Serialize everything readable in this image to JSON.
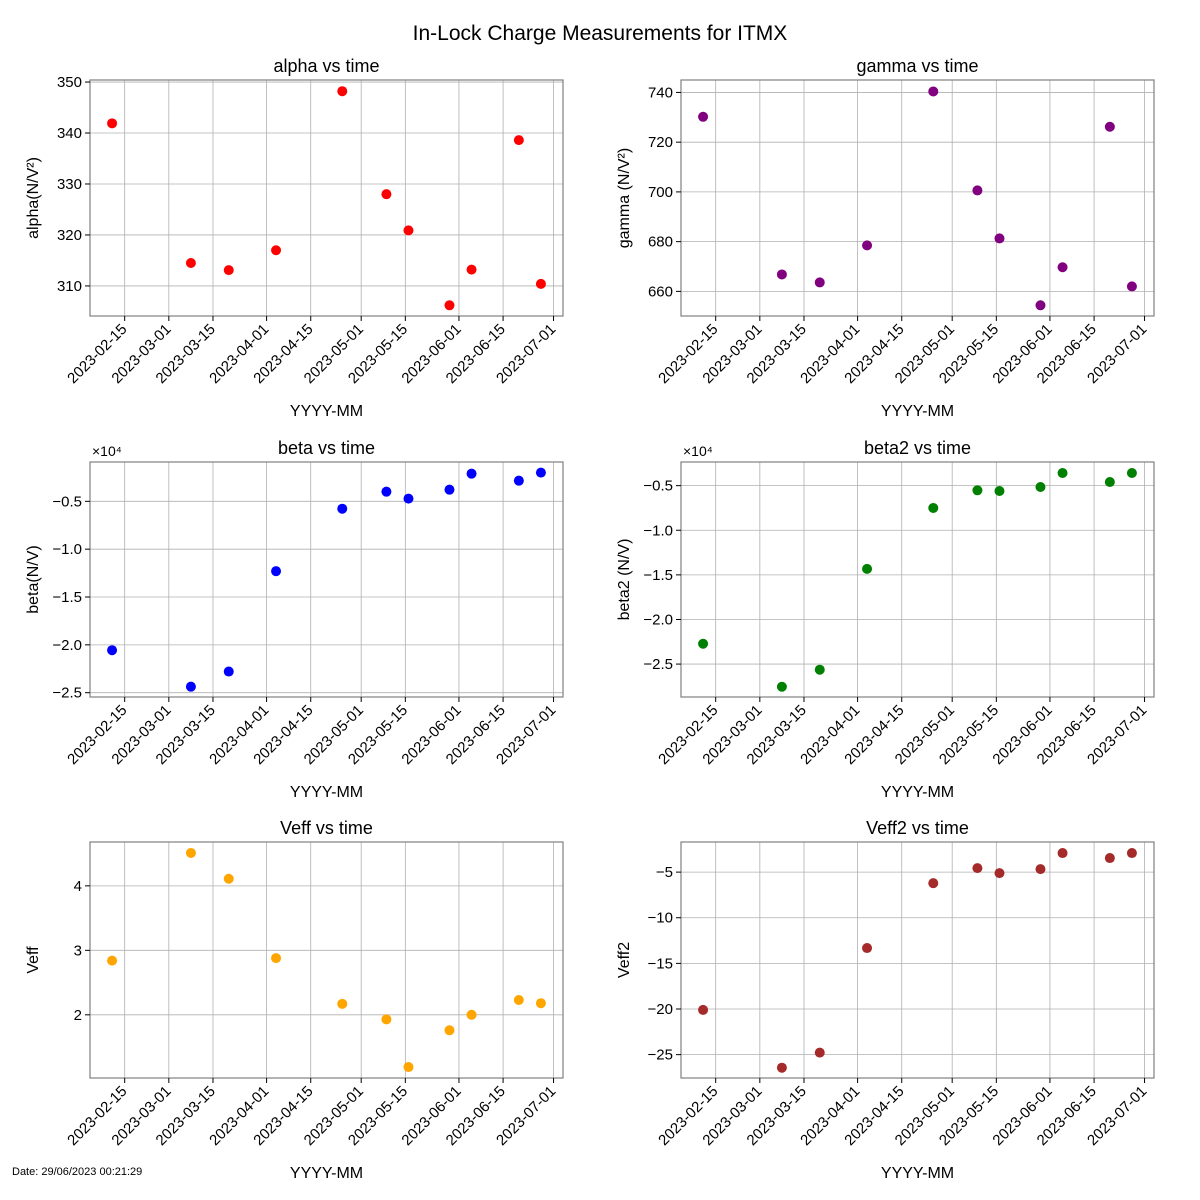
{
  "figure": {
    "title": "In-Lock Charge Measurements for ITMX",
    "footer": "Date: 29/06/2023 00:21:29"
  },
  "chart_data": [
    {
      "type": "scatter",
      "title": "alpha vs time",
      "xlabel": "YYYY-MM",
      "ylabel": "alpha(N/V²)",
      "color": "#ff0000",
      "x": [
        "2023-02-11",
        "2023-03-08",
        "2023-03-20",
        "2023-04-04",
        "2023-04-25",
        "2023-05-09",
        "2023-05-16",
        "2023-05-29",
        "2023-06-05",
        "2023-06-20",
        "2023-06-27"
      ],
      "y": [
        341.9,
        314.5,
        313.1,
        317.0,
        348.2,
        328.0,
        320.9,
        306.2,
        313.2,
        338.6,
        310.4
      ],
      "ylim": [
        304.1,
        350.4
      ],
      "yticks": [
        310,
        320,
        330,
        340,
        350
      ],
      "ytick_labels": [
        "310",
        "320",
        "330",
        "340",
        "350"
      ],
      "offset_text": "",
      "grid": true
    },
    {
      "type": "scatter",
      "title": "gamma vs time",
      "xlabel": "YYYY-MM",
      "ylabel": "gamma (N/V²)",
      "color": "#800080",
      "x": [
        "2023-02-11",
        "2023-03-08",
        "2023-03-20",
        "2023-04-04",
        "2023-04-25",
        "2023-05-09",
        "2023-05-16",
        "2023-05-29",
        "2023-06-05",
        "2023-06-20",
        "2023-06-27"
      ],
      "y": [
        730.2,
        666.8,
        663.6,
        678.5,
        740.4,
        700.6,
        681.3,
        654.4,
        669.7,
        726.2,
        662.0
      ],
      "ylim": [
        650.1,
        745.0
      ],
      "yticks": [
        660,
        680,
        700,
        720,
        740
      ],
      "ytick_labels": [
        "660",
        "680",
        "700",
        "720",
        "740"
      ],
      "offset_text": "",
      "grid": true
    },
    {
      "type": "scatter",
      "title": "beta vs time",
      "xlabel": "YYYY-MM",
      "ylabel": "beta(N/V)",
      "color": "#0000ff",
      "x": [
        "2023-02-11",
        "2023-03-08",
        "2023-03-20",
        "2023-04-04",
        "2023-04-25",
        "2023-05-09",
        "2023-05-16",
        "2023-05-29",
        "2023-06-05",
        "2023-06-20",
        "2023-06-27"
      ],
      "y": [
        -20560,
        -24370,
        -22790,
        -12300,
        -5770,
        -3990,
        -4720,
        -3780,
        -2110,
        -2840,
        -2000
      ],
      "ylim": [
        -25450,
        -890
      ],
      "yticks": [
        -25000,
        -20000,
        -15000,
        -10000,
        -5000
      ],
      "ytick_labels": [
        "−2.5",
        "−2.0",
        "−1.5",
        "−1.0",
        "−0.5"
      ],
      "offset_text": "×10⁴",
      "grid": true
    },
    {
      "type": "scatter",
      "title": "beta2 vs time",
      "xlabel": "YYYY-MM",
      "ylabel": "beta2 (N/V)",
      "color": "#008000",
      "x": [
        "2023-02-11",
        "2023-03-08",
        "2023-03-20",
        "2023-04-04",
        "2023-04-25",
        "2023-05-09",
        "2023-05-16",
        "2023-05-29",
        "2023-06-05",
        "2023-06-20",
        "2023-06-27"
      ],
      "y": [
        -22720,
        -27540,
        -25630,
        -14330,
        -7500,
        -5520,
        -5600,
        -5150,
        -3580,
        -4590,
        -3580
      ],
      "ylim": [
        -28690,
        -2350
      ],
      "yticks": [
        -25000,
        -20000,
        -15000,
        -10000,
        -5000
      ],
      "ytick_labels": [
        "−2.5",
        "−2.0",
        "−1.5",
        "−1.0",
        "−0.5"
      ],
      "offset_text": "×10⁴",
      "grid": true
    },
    {
      "type": "scatter",
      "title": "Veff vs time",
      "xlabel": "YYYY-MM",
      "ylabel": "Veff",
      "color": "#ffa500",
      "x": [
        "2023-02-11",
        "2023-03-08",
        "2023-03-20",
        "2023-04-04",
        "2023-04-25",
        "2023-05-09",
        "2023-05-16",
        "2023-05-29",
        "2023-06-05",
        "2023-06-20",
        "2023-06-27"
      ],
      "y": [
        2.84,
        4.51,
        4.11,
        2.88,
        2.17,
        1.93,
        1.19,
        1.76,
        2.0,
        2.23,
        2.18
      ],
      "ylim": [
        1.02,
        4.68
      ],
      "yticks": [
        2,
        3,
        4
      ],
      "ytick_labels": [
        "2",
        "3",
        "4"
      ],
      "offset_text": "",
      "grid": true
    },
    {
      "type": "scatter",
      "title": "Veff2 vs time",
      "xlabel": "YYYY-MM",
      "ylabel": "Veff2",
      "color": "#a52a2a",
      "x": [
        "2023-02-11",
        "2023-03-08",
        "2023-03-20",
        "2023-04-04",
        "2023-04-25",
        "2023-05-09",
        "2023-05-16",
        "2023-05-29",
        "2023-06-05",
        "2023-06-20",
        "2023-06-27"
      ],
      "y": [
        -20.1,
        -26.43,
        -24.78,
        -13.32,
        -6.21,
        -4.56,
        -5.11,
        -4.67,
        -2.91,
        -3.46,
        -2.91
      ],
      "ylim": [
        -27.56,
        -1.7
      ],
      "yticks": [
        -25,
        -20,
        -15,
        -10,
        -5
      ],
      "ytick_labels": [
        "−25",
        "−20",
        "−15",
        "−10",
        "−5"
      ],
      "offset_text": "",
      "grid": true
    }
  ],
  "shared_x": {
    "xlim": [
      "2023-02-04",
      "2023-07-04"
    ],
    "xticks": [
      "2023-02-15",
      "2023-03-01",
      "2023-03-15",
      "2023-04-01",
      "2023-04-15",
      "2023-05-01",
      "2023-05-15",
      "2023-06-01",
      "2023-06-15",
      "2023-07-01"
    ],
    "xtick_labels": [
      "2023-02-15",
      "2023-03-01",
      "2023-03-15",
      "2023-04-01",
      "2023-04-15",
      "2023-05-01",
      "2023-05-15",
      "2023-06-01",
      "2023-06-15",
      "2023-07-01"
    ]
  }
}
